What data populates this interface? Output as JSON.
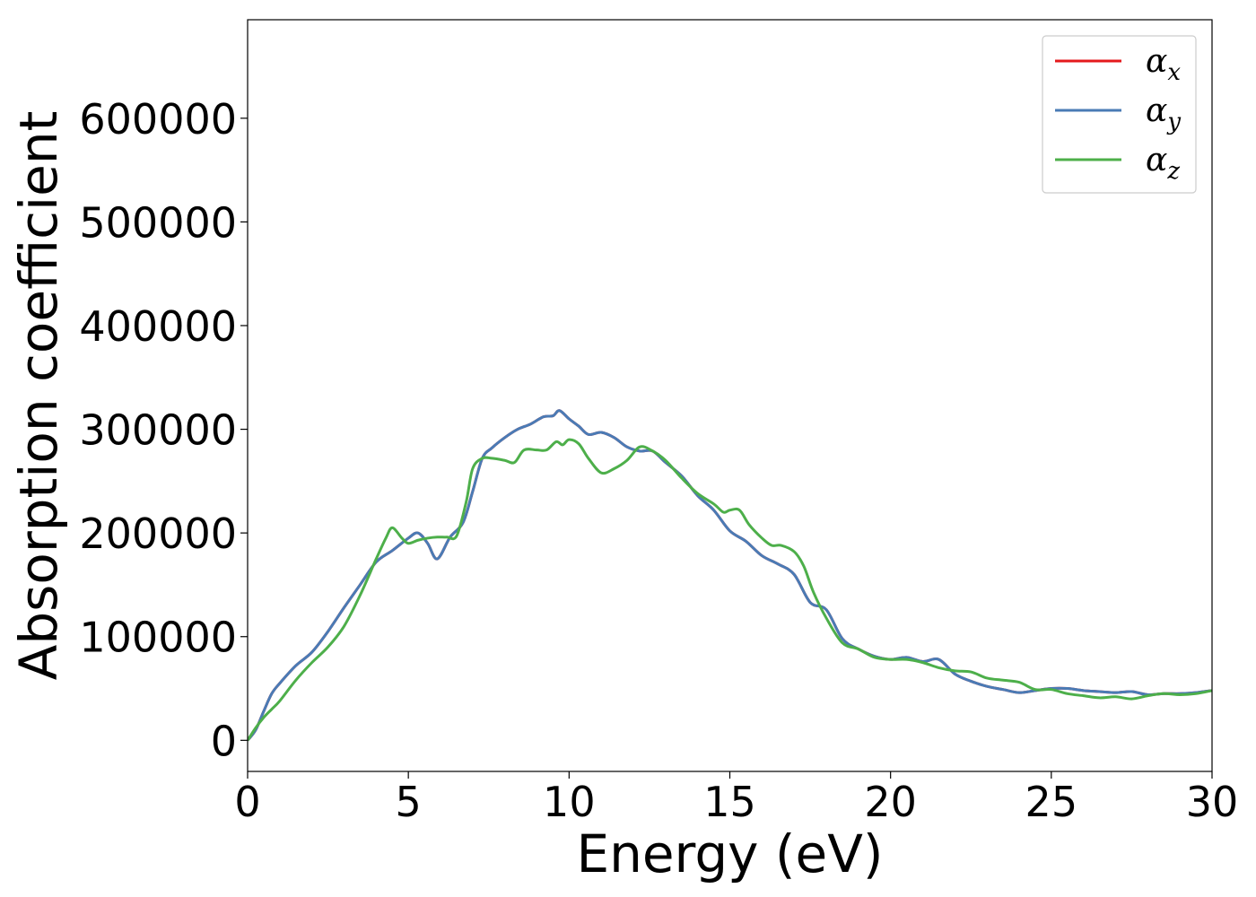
{
  "chart_data": {
    "type": "line",
    "title": "",
    "xlabel": "Energy (eV)",
    "ylabel": "Absorption coefficient",
    "xlim": [
      0,
      30
    ],
    "ylim": [
      -30000,
      695000
    ],
    "xticks": [
      0,
      5,
      10,
      15,
      20,
      25,
      30
    ],
    "yticks": [
      0,
      100000,
      200000,
      300000,
      400000,
      500000,
      600000
    ],
    "grid": false,
    "legend_position": "top-right",
    "series": [
      {
        "name": "α_x",
        "legend_symbol": "α",
        "legend_subscript": "x",
        "color": "#e41a1c",
        "x": [
          0,
          0.25,
          0.5,
          0.75,
          1,
          1.5,
          2,
          2.5,
          3,
          3.5,
          4,
          4.5,
          5,
          5.3,
          5.6,
          5.9,
          6.3,
          6.7,
          7,
          7.3,
          7.6,
          8,
          8.4,
          8.8,
          9.2,
          9.5,
          9.7,
          10,
          10.3,
          10.6,
          11,
          11.4,
          11.8,
          12.2,
          12.6,
          13,
          13.5,
          14,
          14.5,
          15,
          15.5,
          16,
          16.5,
          17,
          17.5,
          18,
          18.5,
          19,
          19.5,
          20,
          20.5,
          21,
          21.5,
          22,
          22.5,
          23,
          23.5,
          24,
          24.5,
          25,
          25.5,
          26,
          26.5,
          27,
          27.5,
          28,
          28.5,
          29,
          29.5,
          30
        ],
        "values": [
          0,
          10000,
          28000,
          45000,
          55000,
          72000,
          85000,
          105000,
          128000,
          150000,
          172000,
          183000,
          195000,
          200000,
          190000,
          175000,
          196000,
          210000,
          240000,
          272000,
          282000,
          292000,
          300000,
          305000,
          312000,
          313000,
          318000,
          310000,
          303000,
          295000,
          297000,
          292000,
          283000,
          279000,
          279000,
          268000,
          255000,
          236000,
          222000,
          202000,
          192000,
          178000,
          170000,
          160000,
          133000,
          126000,
          98000,
          88000,
          81000,
          78000,
          80000,
          76000,
          78000,
          64000,
          57000,
          52000,
          49000,
          46000,
          48000,
          50000,
          50000,
          48000,
          47000,
          46000,
          47000,
          44000,
          45000,
          45000,
          46000,
          48000
        ]
      },
      {
        "name": "α_y",
        "legend_symbol": "α",
        "legend_subscript": "y",
        "color": "#4a7bb5",
        "x": [
          0,
          0.25,
          0.5,
          0.75,
          1,
          1.5,
          2,
          2.5,
          3,
          3.5,
          4,
          4.5,
          5,
          5.3,
          5.6,
          5.9,
          6.3,
          6.7,
          7,
          7.3,
          7.6,
          8,
          8.4,
          8.8,
          9.2,
          9.5,
          9.7,
          10,
          10.3,
          10.6,
          11,
          11.4,
          11.8,
          12.2,
          12.6,
          13,
          13.5,
          14,
          14.5,
          15,
          15.5,
          16,
          16.5,
          17,
          17.5,
          18,
          18.5,
          19,
          19.5,
          20,
          20.5,
          21,
          21.5,
          22,
          22.5,
          23,
          23.5,
          24,
          24.5,
          25,
          25.5,
          26,
          26.5,
          27,
          27.5,
          28,
          28.5,
          29,
          29.5,
          30
        ],
        "values": [
          0,
          10000,
          28000,
          45000,
          55000,
          72000,
          85000,
          105000,
          128000,
          150000,
          172000,
          183000,
          195000,
          200000,
          190000,
          175000,
          196000,
          210000,
          240000,
          272000,
          282000,
          292000,
          300000,
          305000,
          312000,
          313000,
          318000,
          310000,
          303000,
          295000,
          297000,
          292000,
          283000,
          279000,
          279000,
          268000,
          255000,
          236000,
          222000,
          202000,
          192000,
          178000,
          170000,
          160000,
          133000,
          126000,
          98000,
          88000,
          81000,
          78000,
          80000,
          76000,
          78000,
          64000,
          57000,
          52000,
          49000,
          46000,
          48000,
          50000,
          50000,
          48000,
          47000,
          46000,
          47000,
          44000,
          45000,
          45000,
          46000,
          48000
        ]
      },
      {
        "name": "α_z",
        "legend_symbol": "α",
        "legend_subscript": "z",
        "color": "#4daf4a",
        "x": [
          0,
          0.25,
          0.5,
          0.75,
          1,
          1.5,
          2,
          2.5,
          3,
          3.5,
          4,
          4.3,
          4.5,
          4.8,
          5,
          5.3,
          5.6,
          5.9,
          6.2,
          6.5,
          6.8,
          7,
          7.3,
          7.6,
          8,
          8.3,
          8.6,
          9,
          9.3,
          9.6,
          9.8,
          10,
          10.3,
          10.6,
          11,
          11.4,
          11.8,
          12.2,
          12.6,
          13,
          13.5,
          14,
          14.5,
          14.8,
          15,
          15.3,
          15.6,
          16,
          16.3,
          16.6,
          17,
          17.3,
          17.6,
          18,
          18.5,
          19,
          19.5,
          20,
          20.5,
          21,
          21.5,
          22,
          22.5,
          23,
          23.5,
          24,
          24.5,
          25,
          25.5,
          26,
          26.5,
          27,
          27.5,
          28,
          28.5,
          29,
          29.5,
          30
        ],
        "values": [
          0,
          12000,
          22000,
          30000,
          38000,
          58000,
          75000,
          90000,
          110000,
          140000,
          175000,
          195000,
          205000,
          195000,
          190000,
          193000,
          195000,
          196000,
          196000,
          197000,
          230000,
          262000,
          272000,
          272000,
          270000,
          268000,
          280000,
          280000,
          280000,
          288000,
          285000,
          290000,
          286000,
          272000,
          258000,
          262000,
          270000,
          283000,
          279000,
          270000,
          253000,
          238000,
          228000,
          220000,
          222000,
          222000,
          208000,
          195000,
          188000,
          188000,
          182000,
          168000,
          143000,
          118000,
          94000,
          88000,
          80000,
          78000,
          78000,
          75000,
          70000,
          67000,
          66000,
          60000,
          58000,
          56000,
          49000,
          49000,
          45000,
          43000,
          41000,
          42000,
          40000,
          43000,
          45000,
          44000,
          45000,
          48000
        ]
      }
    ]
  }
}
